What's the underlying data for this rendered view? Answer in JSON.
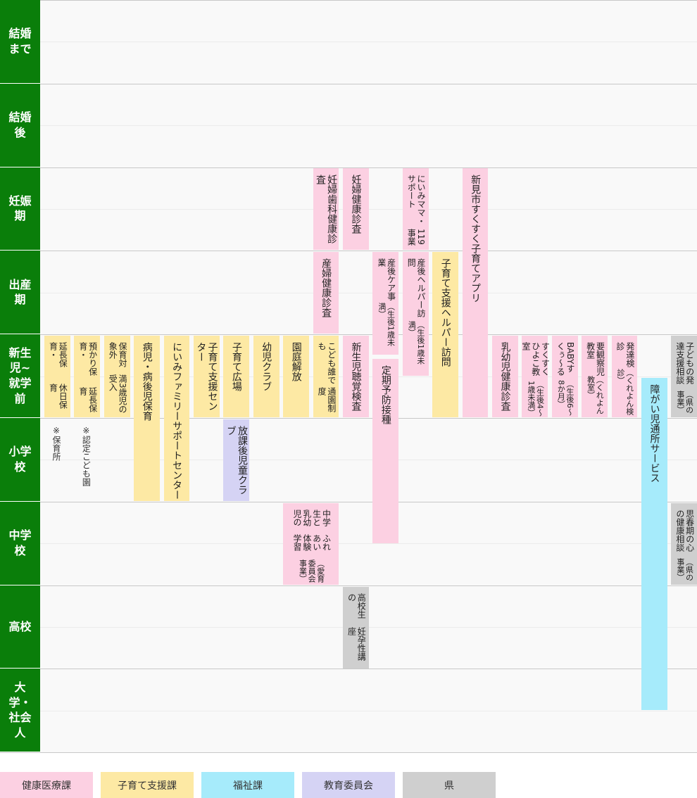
{
  "stages": [
    "結婚まで",
    "結婚後",
    "妊娠期",
    "出産期",
    "新生児~就学前",
    "小学校",
    "中学校",
    "高校",
    "大学・社会人"
  ],
  "services": [
    {
      "lines": [
        "延長保育・",
        "休日保育"
      ],
      "color": "#fde9a4"
    },
    {
      "lines": [
        "預かり保育・",
        "延長保育"
      ],
      "color": "#fde9a4"
    },
    {
      "lines": [
        "保育対象外",
        "満3歳児の受入"
      ],
      "color": "#fde9a4"
    },
    {
      "lines": [
        "病児・病後児保育"
      ],
      "color": "#fde9a4"
    },
    {
      "lines": [
        "にいみファミリーサポートセンター"
      ],
      "color": "#fde9a4"
    },
    {
      "lines": [
        "子育て支援センター"
      ],
      "color": "#fde9a4"
    },
    {
      "lines": [
        "子育て広場"
      ],
      "color": "#fde9a4"
    },
    {
      "lines": [
        "放課後児童クラブ"
      ],
      "color": "#d5d3f4"
    },
    {
      "lines": [
        "幼児クラブ"
      ],
      "color": "#fde9a4"
    },
    {
      "lines": [
        "園庭解放"
      ],
      "color": "#fde9a4"
    },
    {
      "lines": [
        "こども誰でも",
        "通園制度"
      ],
      "color": "#fde9a4"
    },
    {
      "lines": [
        "中学生と乳幼児の",
        "ふれあい体験学習",
        "（愛育委員会事業）"
      ],
      "color": "#fcd0e2"
    },
    {
      "lines": [
        "妊婦歯科健康診査"
      ],
      "color": "#fcd0e2"
    },
    {
      "lines": [
        "産婦健康診査"
      ],
      "color": "#fcd0e2"
    },
    {
      "lines": [
        "妊婦健康診査"
      ],
      "color": "#fcd0e2"
    },
    {
      "lines": [
        "新生児聴覚検査"
      ],
      "color": "#fcd0e2"
    },
    {
      "lines": [
        "高校生の",
        "妊孕性講座"
      ],
      "color": "#cfcfcf"
    },
    {
      "lines": [
        "産後ケア事業",
        "（生後1歳未満）"
      ],
      "color": "#fcd0e2"
    },
    {
      "lines": [
        "定期予防接種"
      ],
      "color": "#fcd0e2"
    },
    {
      "lines": [
        "にいみママ・サポート",
        "119事業"
      ],
      "color": "#fcd0e2"
    },
    {
      "lines": [
        "産後ヘルパー訪問",
        "（生後1歳未満）"
      ],
      "color": "#fcd0e2"
    },
    {
      "lines": [
        "子育て支援ヘルパー訪問"
      ],
      "color": "#fde9a4"
    },
    {
      "lines": [
        "新見市すくすく子育てアプリ"
      ],
      "color": "#fcd0e2"
    },
    {
      "lines": [
        "乳幼児健康診査"
      ],
      "color": "#fcd0e2"
    },
    {
      "lines": [
        "すくすくひよこ教室",
        "（生後4～1歳未満）"
      ],
      "color": "#fcd0e2"
    },
    {
      "lines": [
        "BABYすくぅ～る",
        "（生後6～8か月）"
      ],
      "color": "#fcd0e2"
    },
    {
      "lines": [
        "要観察児教室",
        "（くれよん教室）"
      ],
      "color": "#fcd0e2"
    },
    {
      "lines": [
        "発達検診",
        "（くれよん検診）"
      ],
      "color": "#fcd0e2"
    },
    {
      "lines": [
        "障がい児通所サービス"
      ],
      "color": "#a6ebfb"
    },
    {
      "lines": [
        "子どもの発達支援相談",
        "（県の事業）"
      ],
      "color": "#cfcfcf"
    },
    {
      "lines": [
        "思春期の心の健康相談",
        "（県の事業）"
      ],
      "color": "#cfcfcf"
    }
  ],
  "notes": [
    "※保育所",
    "※認定こども園"
  ],
  "legend": [
    {
      "label": "健康医療課",
      "color": "#fcd0e2"
    },
    {
      "label": "子育て支援課",
      "color": "#fde9a4"
    },
    {
      "label": "福祉課",
      "color": "#a6ebfb"
    },
    {
      "label": "教育委員会",
      "color": "#d5d3f4"
    },
    {
      "label": "県",
      "color": "#cfcfcf"
    }
  ]
}
